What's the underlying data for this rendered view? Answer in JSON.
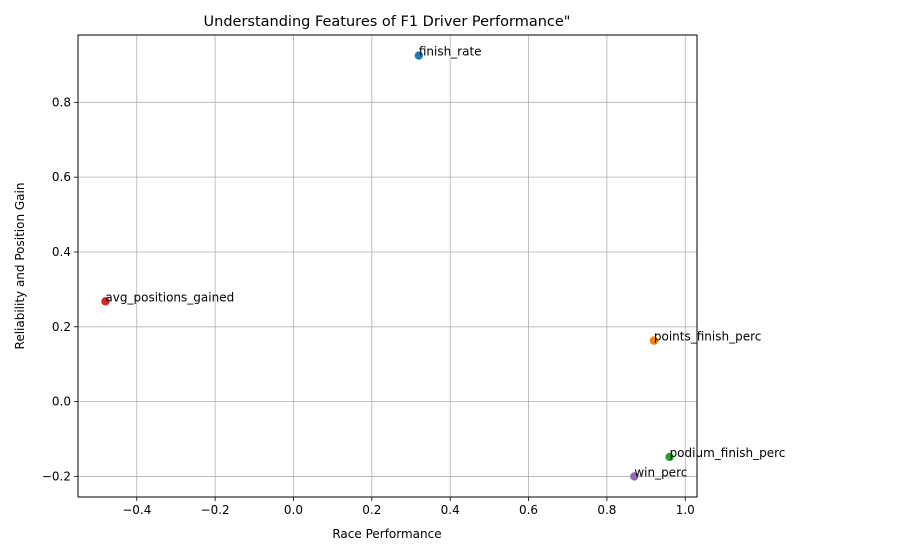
{
  "chart_data": {
    "type": "scatter",
    "title": "Understanding Features of F1 Driver Performance\"",
    "xlabel": "Race Performance",
    "ylabel": "Reliability and Position Gain",
    "xlim": [
      -0.55,
      1.03
    ],
    "ylim": [
      -0.255,
      0.98
    ],
    "xticks": [
      -0.4,
      -0.2,
      0.0,
      0.2,
      0.4,
      0.6,
      0.8,
      1.0
    ],
    "xtick_labels": [
      "−0.4",
      "−0.2",
      "0.0",
      "0.2",
      "0.4",
      "0.6",
      "0.8",
      "1.0"
    ],
    "yticks": [
      -0.2,
      0.0,
      0.2,
      0.4,
      0.6,
      0.8
    ],
    "ytick_labels": [
      "−0.2",
      "0.0",
      "0.2",
      "0.4",
      "0.6",
      "0.8"
    ],
    "grid": true,
    "points": [
      {
        "label": "finish_rate",
        "x": 0.32,
        "y": 0.925,
        "color": "#1f77b4"
      },
      {
        "label": "points_finish_perc",
        "x": 0.92,
        "y": 0.163,
        "color": "#ff7f0e"
      },
      {
        "label": "podium_finish_perc",
        "x": 0.96,
        "y": -0.148,
        "color": "#2ca02c"
      },
      {
        "label": "avg_positions_gained",
        "x": -0.48,
        "y": 0.268,
        "color": "#d62728"
      },
      {
        "label": "win_perc",
        "x": 0.87,
        "y": -0.2,
        "color": "#9467bd"
      }
    ]
  }
}
